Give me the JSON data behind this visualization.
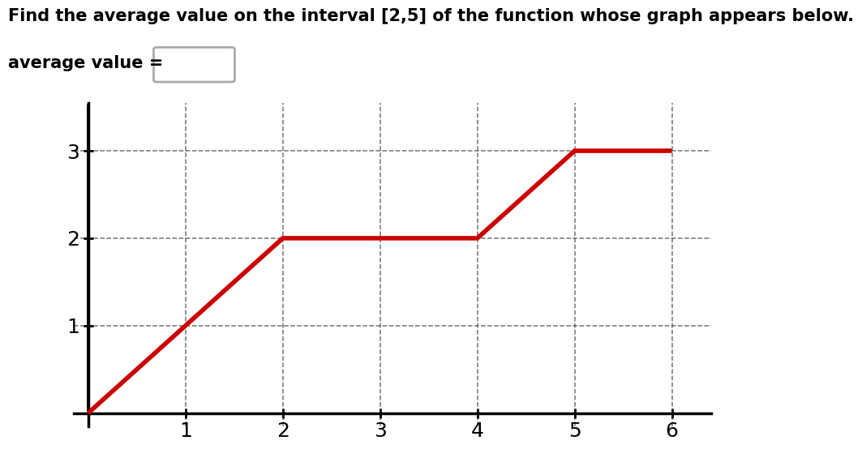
{
  "title": "Find the average value on the interval [2,5] of the function whose graph appears below.",
  "avg_label": "average value =",
  "graph_x": [
    0,
    2,
    4,
    5,
    6
  ],
  "graph_y": [
    0,
    2,
    2,
    3,
    3
  ],
  "line_color": "#cc0000",
  "line_width": 4.0,
  "xlim": [
    -0.15,
    6.4
  ],
  "ylim": [
    -0.15,
    3.55
  ],
  "xticks": [
    1,
    2,
    3,
    4,
    5,
    6
  ],
  "yticks": [
    1,
    2,
    3
  ],
  "grid_color": "#444444",
  "grid_alpha": 0.75,
  "axis_color": "#000000",
  "tick_fontsize": 18,
  "title_fontsize": 15,
  "label_fontsize": 15,
  "box_color": "#aaaaaa"
}
